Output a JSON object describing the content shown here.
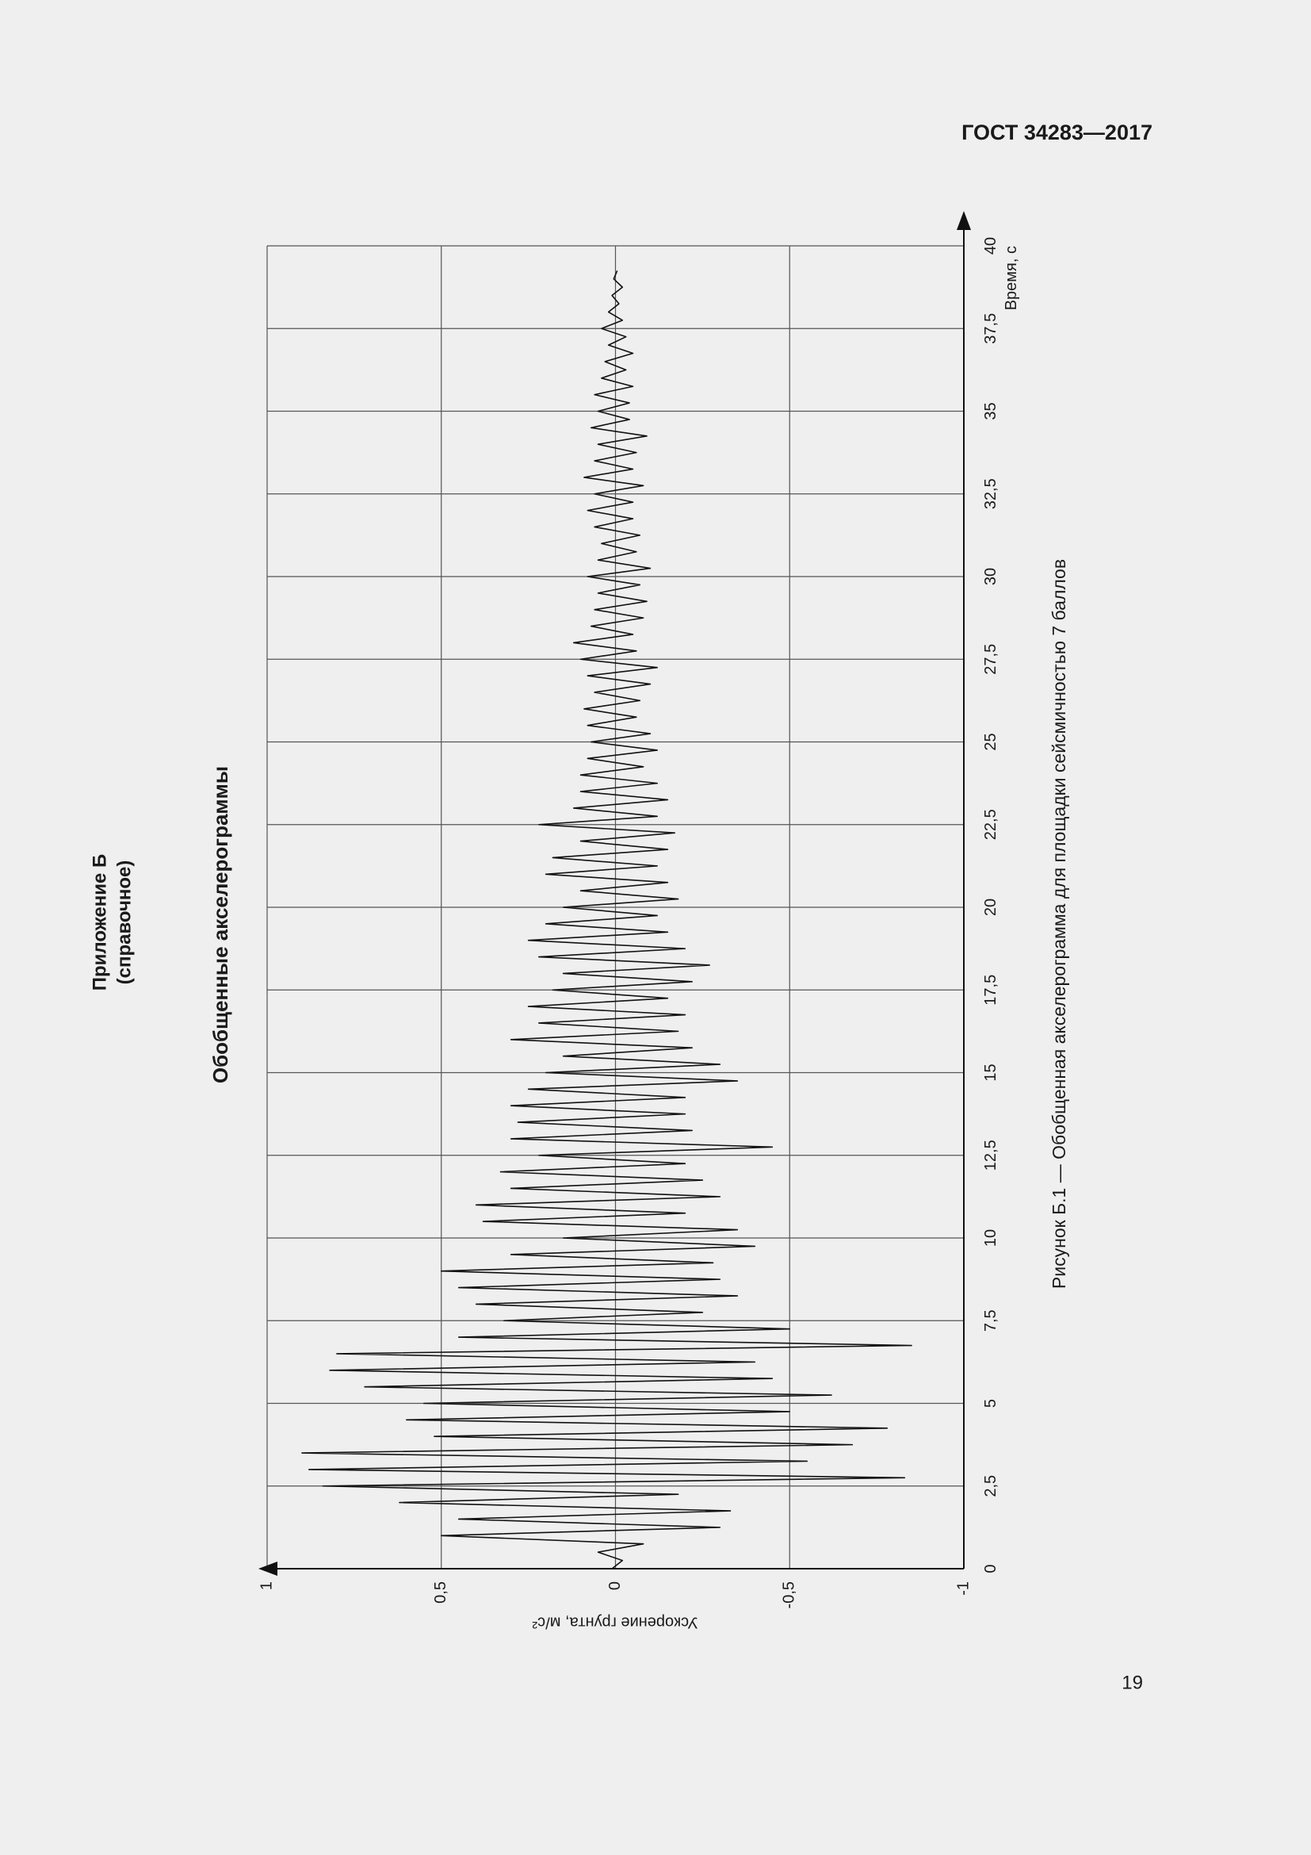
{
  "header": "ГОСТ 34283—2017",
  "appendix": {
    "title": "Приложение Б",
    "note": "(справочное)",
    "heading": "Обобщенные акселерограммы"
  },
  "caption": "Рисунок Б.1 — Обобщенная акселерограмма для площадки сейсмичностью 7 баллов",
  "page_number": "19",
  "chart_data": {
    "type": "line",
    "color": "#111111",
    "xlabel": "Время, с",
    "ylabel": "Ускорение грунта, м/с²",
    "xlim": [
      0,
      40
    ],
    "ylim": [
      -1,
      1
    ],
    "grid": true,
    "xticks": [
      0,
      {
        "value": 2.5,
        "label": "2,5"
      },
      5,
      {
        "value": 7.5,
        "label": "7,5"
      },
      10,
      {
        "value": 12.5,
        "label": "12,5"
      },
      15,
      {
        "value": 17.5,
        "label": "17,5"
      },
      20,
      {
        "value": 22.5,
        "label": "22,5"
      },
      25,
      {
        "value": 27.5,
        "label": "27,5"
      },
      30,
      {
        "value": 32.5,
        "label": "32,5"
      },
      35,
      {
        "value": 37.5,
        "label": "37,5"
      },
      40
    ],
    "yticks": [
      1,
      {
        "value": 0.5,
        "label": "0,5"
      },
      0,
      {
        "value": -0.5,
        "label": "-0,5"
      },
      -1
    ],
    "x": [
      0,
      0.25,
      0.5,
      0.75,
      1,
      1.25,
      1.5,
      1.75,
      2,
      2.25,
      2.5,
      2.75,
      3,
      3.25,
      3.5,
      3.75,
      4,
      4.25,
      4.5,
      4.75,
      5,
      5.25,
      5.5,
      5.75,
      6,
      6.25,
      6.5,
      6.75,
      7,
      7.25,
      7.5,
      7.75,
      8,
      8.25,
      8.5,
      8.75,
      9,
      9.25,
      9.5,
      9.75,
      10,
      10.25,
      10.5,
      10.75,
      11,
      11.25,
      11.5,
      11.75,
      12,
      12.25,
      12.5,
      12.75,
      13,
      13.25,
      13.5,
      13.75,
      14,
      14.25,
      14.5,
      14.75,
      15,
      15.25,
      15.5,
      15.75,
      16,
      16.25,
      16.5,
      16.75,
      17,
      17.25,
      17.5,
      17.75,
      18,
      18.25,
      18.5,
      18.75,
      19,
      19.25,
      19.5,
      19.75,
      20,
      20.25,
      20.5,
      20.75,
      21,
      21.25,
      21.5,
      21.75,
      22,
      22.25,
      22.5,
      22.75,
      23,
      23.25,
      23.5,
      23.75,
      24,
      24.25,
      24.5,
      24.75,
      25,
      25.25,
      25.5,
      25.75,
      26,
      26.25,
      26.5,
      26.75,
      27,
      27.25,
      27.5,
      27.75,
      28,
      28.25,
      28.5,
      28.75,
      29,
      29.25,
      29.5,
      29.75,
      30,
      30.25,
      30.5,
      30.75,
      31,
      31.25,
      31.5,
      31.75,
      32,
      32.25,
      32.5,
      32.75,
      33,
      33.25,
      33.5,
      33.75,
      34,
      34.25,
      34.5,
      34.75,
      35,
      35.25,
      35.5,
      35.75,
      36,
      36.25,
      36.5,
      36.75,
      37,
      37.25,
      37.5,
      37.75,
      38,
      38.25,
      38.5,
      38.75,
      39,
      39.25
    ],
    "values": [
      0.01,
      -0.02,
      0.05,
      -0.08,
      0.5,
      -0.3,
      0.45,
      -0.33,
      0.62,
      -0.18,
      0.84,
      -0.83,
      0.88,
      -0.55,
      0.9,
      -0.68,
      0.52,
      -0.78,
      0.6,
      -0.5,
      0.55,
      -0.62,
      0.72,
      -0.45,
      0.82,
      -0.4,
      0.8,
      -0.85,
      0.45,
      -0.5,
      0.32,
      -0.25,
      0.4,
      -0.35,
      0.45,
      -0.3,
      0.5,
      -0.28,
      0.3,
      -0.4,
      0.15,
      -0.35,
      0.38,
      -0.2,
      0.4,
      -0.3,
      0.3,
      -0.25,
      0.33,
      -0.2,
      0.22,
      -0.45,
      0.3,
      -0.22,
      0.28,
      -0.2,
      0.3,
      -0.2,
      0.25,
      -0.35,
      0.2,
      -0.3,
      0.15,
      -0.22,
      0.3,
      -0.18,
      0.22,
      -0.2,
      0.25,
      -0.15,
      0.18,
      -0.22,
      0.15,
      -0.27,
      0.22,
      -0.2,
      0.25,
      -0.15,
      0.2,
      -0.12,
      0.15,
      -0.18,
      0.1,
      -0.15,
      0.2,
      -0.12,
      0.18,
      -0.15,
      0.1,
      -0.17,
      0.22,
      -0.12,
      0.12,
      -0.15,
      0.1,
      -0.12,
      0.1,
      -0.08,
      0.08,
      -0.12,
      0.07,
      -0.1,
      0.08,
      -0.06,
      0.09,
      -0.07,
      0.06,
      -0.1,
      0.08,
      -0.12,
      0.1,
      -0.06,
      0.12,
      -0.05,
      0.07,
      -0.08,
      0.06,
      -0.09,
      0.05,
      -0.07,
      0.08,
      -0.1,
      0.05,
      -0.06,
      0.04,
      -0.07,
      0.06,
      -0.05,
      0.08,
      -0.05,
      0.06,
      -0.08,
      0.09,
      -0.05,
      0.06,
      -0.06,
      0.05,
      -0.09,
      0.07,
      -0.04,
      0.05,
      -0.04,
      0.06,
      -0.05,
      0.04,
      -0.03,
      0.03,
      -0.05,
      0.02,
      -0.03,
      0.04,
      -0.02,
      0.02,
      -0.01,
      0.01,
      -0.02,
      0.005,
      -0.005
    ]
  }
}
